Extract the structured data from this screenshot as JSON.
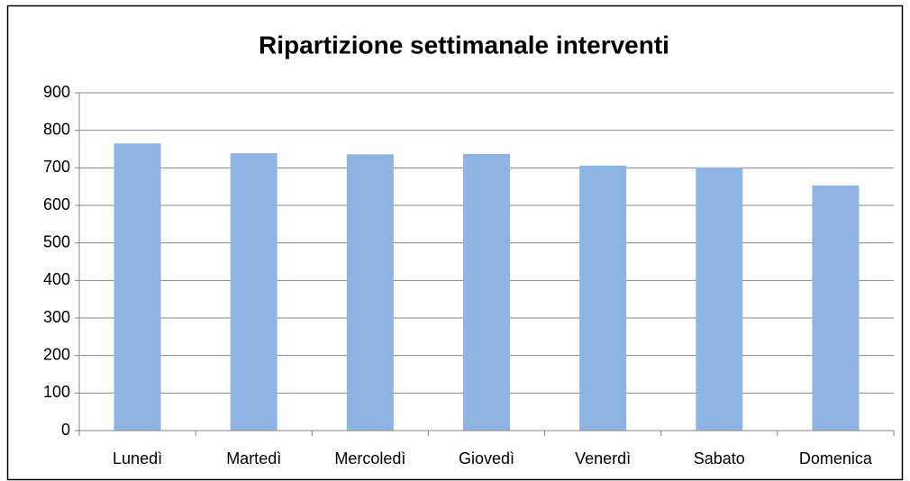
{
  "chart_data": {
    "type": "bar",
    "title": "Ripartizione settimanale interventi",
    "categories": [
      "Lunedì",
      "Martedì",
      "Mercoledì",
      "Giovedì",
      "Venerdì",
      "Sabato",
      "Domenica"
    ],
    "values": [
      765,
      739,
      736,
      737,
      706,
      701,
      653
    ],
    "color": "#8eb4e3",
    "ylim": [
      0,
      900
    ],
    "yticks": [
      0,
      100,
      200,
      300,
      400,
      500,
      600,
      700,
      800,
      900
    ],
    "grid": true
  }
}
